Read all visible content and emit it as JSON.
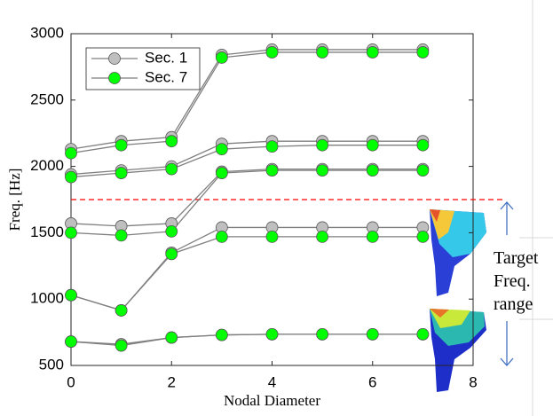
{
  "chart_data": {
    "type": "line",
    "xlabel": "Nodal Diameter",
    "ylabel": "Freq. [Hz]",
    "x": [
      0,
      1,
      2,
      3,
      4,
      5,
      6,
      7
    ],
    "xlim": [
      0,
      8
    ],
    "xticks": [
      0,
      2,
      4,
      6,
      8
    ],
    "ylim": [
      500,
      3000
    ],
    "yticks": [
      500,
      1000,
      1500,
      2000,
      2500,
      3000
    ],
    "grid": false,
    "legend": "upper-left",
    "line_color": "#7f7f7f",
    "series": [
      {
        "name": "Sec. 1",
        "color": "#bfbfbf",
        "values": [
          [
            2130,
            2190,
            2220,
            2840,
            2880,
            2880,
            2880,
            2880
          ],
          [
            1940,
            1970,
            2000,
            2170,
            2190,
            2190,
            2190,
            2190
          ],
          [
            1570,
            1550,
            1570,
            1960,
            1980,
            1980,
            1980,
            1980
          ],
          [
            1030,
            915,
            1350,
            1540,
            1540,
            1540,
            1540,
            1540
          ],
          [
            680,
            660,
            710,
            730,
            735,
            735,
            735,
            735
          ]
        ]
      },
      {
        "name": "Sec. 7",
        "color": "#00ff00",
        "values": [
          [
            2100,
            2160,
            2190,
            2820,
            2860,
            2860,
            2860,
            2860
          ],
          [
            1920,
            1950,
            1980,
            2130,
            2150,
            2160,
            2160,
            2160
          ],
          [
            1500,
            1480,
            1510,
            1950,
            1970,
            1970,
            1970,
            1970
          ],
          [
            1030,
            915,
            1340,
            1470,
            1470,
            1470,
            1470,
            1470
          ],
          [
            680,
            650,
            710,
            730,
            735,
            735,
            735,
            735
          ]
        ]
      }
    ],
    "reference_line": {
      "value": 1750,
      "color": "#ff0000"
    },
    "annotation": [
      "Target",
      "Freq.",
      "range"
    ]
  }
}
